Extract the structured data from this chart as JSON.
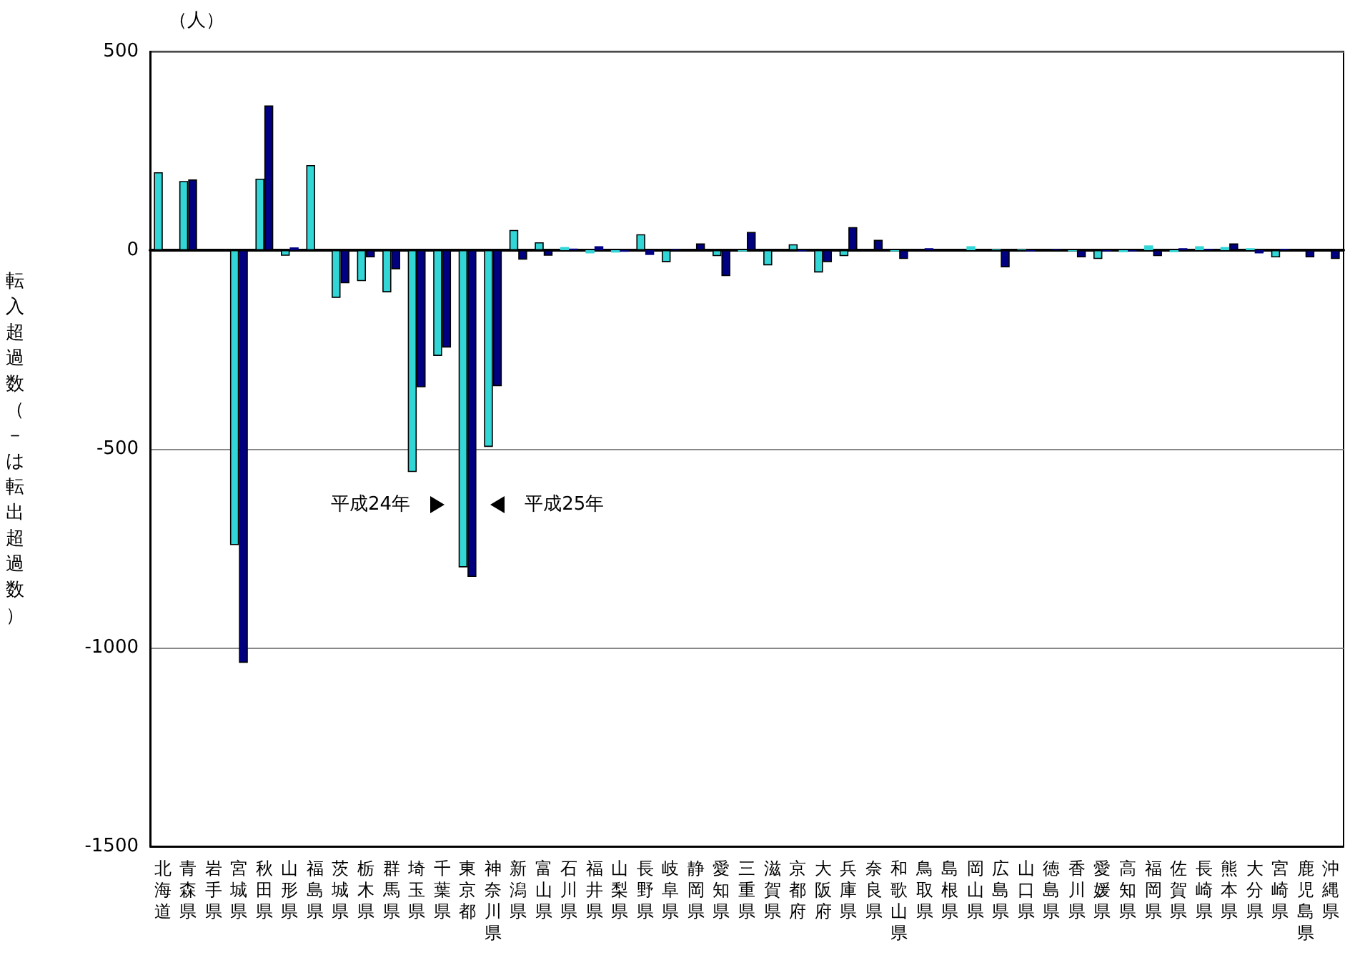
{
  "chart_data": {
    "type": "bar",
    "ylabel": "転入超過数（－は転出超過数）",
    "annotations": [
      "（人）"
    ],
    "categories": [
      "北海道",
      "青森県",
      "岩手県",
      "宮城県",
      "秋田県",
      "山形県",
      "福島県",
      "茨城県",
      "栃木県",
      "群馬県",
      "埼玉県",
      "千葉県",
      "東京都",
      "神奈川県",
      "新潟県",
      "富山県",
      "石川県",
      "福井県",
      "山梨県",
      "長野県",
      "岐阜県",
      "静岡県",
      "愛知県",
      "三重県",
      "滋賀県",
      "京都府",
      "大阪府",
      "兵庫県",
      "奈良県",
      "和歌山県",
      "鳥取県",
      "島根県",
      "岡山県",
      "広島県",
      "山口県",
      "徳島県",
      "香川県",
      "愛媛県",
      "高知県",
      "福岡県",
      "佐賀県",
      "長崎県",
      "熊本県",
      "大分県",
      "宮崎県",
      "鹿児島県",
      "沖縄県"
    ],
    "series": [
      {
        "name": "平成24年",
        "color": "#33d6d6",
        "values": [
          196,
          174,
          0,
          -742,
          180,
          -14,
          214,
          -120,
          -78,
          -106,
          -558,
          -266,
          -798,
          -495,
          51,
          20,
          8,
          -8,
          -6,
          40,
          -30,
          0,
          -15,
          -3,
          -38,
          15,
          -56,
          -15,
          0,
          -3,
          0,
          0,
          10,
          2,
          2,
          0,
          -3,
          -22,
          -5,
          12,
          -5,
          10,
          8,
          5,
          -18,
          0,
          0
        ]
      },
      {
        "name": "平成25年",
        "color": "#000080",
        "values": [
          0,
          178,
          0,
          -1038,
          364,
          7,
          0,
          -83,
          -18,
          -48,
          -345,
          -245,
          -822,
          -342,
          -24,
          -14,
          4,
          10,
          -4,
          -12,
          2,
          17,
          -65,
          46,
          0,
          -3,
          -30,
          58,
          26,
          -22,
          5,
          0,
          0,
          -43,
          -3,
          2,
          -18,
          -3,
          -3,
          -15,
          5,
          3,
          17,
          -8,
          3,
          -18,
          -22
        ]
      }
    ],
    "ylim": [
      -1500,
      500
    ],
    "yticks": [
      -1500,
      -1000,
      -500,
      0,
      500
    ],
    "grid": "y"
  }
}
